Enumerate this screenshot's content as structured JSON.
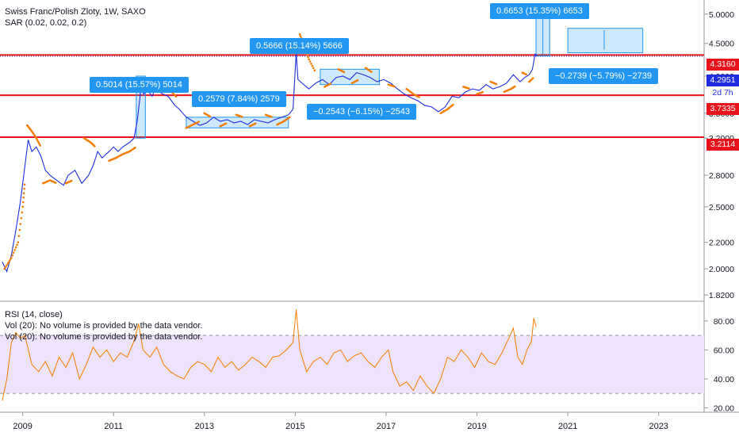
{
  "header": {
    "symbol_line": "Swiss Franc/Polish Zloty, 1W, SAXO",
    "indicator_line": "SAR (0.02, 0.02, 0.2)"
  },
  "rsi_pane": {
    "title": "RSI (14, close)",
    "vol_line_1": "Vol (20): No volume is provided by the data vendor.",
    "vol_line_2": "Vol (20): No volume is provided by the data vendor."
  },
  "callouts": {
    "c1": "0.5014 (15.57%) 5014",
    "c2": "0.2579 (7.84%) 2579",
    "c3": "0.5666 (15.14%) 5666",
    "c4": "−0.2543 (−6.15%) −2543",
    "c5": "0.6653 (15.35%) 6653",
    "c6": "−0.2739 (−5.79%) −2739"
  },
  "price_tags": {
    "t1": "4.3160",
    "t2": "4.2951",
    "t3": "2d 7h",
    "t4": "3.7335",
    "t5": "3.2114"
  },
  "colors": {
    "price_line": "#1f2de0",
    "sar_dots": "#f57c00",
    "horizontal_lines": "#e8131b",
    "callout_bg": "#2196f3",
    "rsi_line": "#f57c00",
    "rsi_band": "#efe3fb"
  },
  "chart_data": {
    "type": "line",
    "title": "Swiss Franc/Polish Zloty, 1W, SAXO",
    "y_scale": "log",
    "y_ticks": [
      1.82,
      2.0,
      2.2,
      2.5,
      2.8,
      3.2,
      3.5,
      4.0,
      4.5,
      5.0
    ],
    "y_tick_labels": [
      "1.8200",
      "2.0000",
      "2.2000",
      "2.5000",
      "2.8000",
      "3.2000",
      "3.5000",
      "4.0000",
      "4.5000",
      "5.0000"
    ],
    "x_ticks": [
      2009,
      2011,
      2013,
      2015,
      2017,
      2019,
      2021,
      2023
    ],
    "xlim": [
      2008.5,
      2024.0
    ],
    "ylim": [
      1.8,
      5.2
    ],
    "horizontal_levels": [
      4.316,
      3.7335,
      3.2114
    ],
    "price_series": [
      [
        2008.55,
        2.05
      ],
      [
        2008.65,
        1.98
      ],
      [
        2008.75,
        2.1
      ],
      [
        2008.85,
        2.3
      ],
      [
        2008.95,
        2.55
      ],
      [
        2009.05,
        2.9
      ],
      [
        2009.12,
        3.18
      ],
      [
        2009.2,
        3.05
      ],
      [
        2009.3,
        3.1
      ],
      [
        2009.4,
        3.0
      ],
      [
        2009.5,
        2.85
      ],
      [
        2009.6,
        2.8
      ],
      [
        2009.75,
        2.75
      ],
      [
        2009.9,
        2.7
      ],
      [
        2010.0,
        2.8
      ],
      [
        2010.15,
        2.85
      ],
      [
        2010.3,
        2.72
      ],
      [
        2010.45,
        2.8
      ],
      [
        2010.55,
        2.9
      ],
      [
        2010.65,
        3.05
      ],
      [
        2010.75,
        2.98
      ],
      [
        2010.9,
        3.05
      ],
      [
        2011.0,
        3.1
      ],
      [
        2011.1,
        3.05
      ],
      [
        2011.2,
        3.1
      ],
      [
        2011.35,
        3.15
      ],
      [
        2011.45,
        3.2
      ],
      [
        2011.52,
        3.4
      ],
      [
        2011.58,
        3.7
      ],
      [
        2011.62,
        3.98
      ],
      [
        2011.66,
        3.75
      ],
      [
        2011.75,
        3.8
      ],
      [
        2011.85,
        3.72
      ],
      [
        2011.95,
        3.88
      ],
      [
        2012.05,
        3.76
      ],
      [
        2012.2,
        3.72
      ],
      [
        2012.35,
        3.6
      ],
      [
        2012.45,
        3.55
      ],
      [
        2012.6,
        3.45
      ],
      [
        2012.75,
        3.4
      ],
      [
        2012.9,
        3.35
      ],
      [
        2013.05,
        3.38
      ],
      [
        2013.2,
        3.45
      ],
      [
        2013.35,
        3.4
      ],
      [
        2013.5,
        3.42
      ],
      [
        2013.65,
        3.38
      ],
      [
        2013.8,
        3.4
      ],
      [
        2013.95,
        3.36
      ],
      [
        2014.1,
        3.42
      ],
      [
        2014.25,
        3.4
      ],
      [
        2014.4,
        3.38
      ],
      [
        2014.55,
        3.42
      ],
      [
        2014.7,
        3.45
      ],
      [
        2014.85,
        3.48
      ],
      [
        2014.95,
        3.55
      ],
      [
        2015.02,
        4.35
      ],
      [
        2015.06,
        3.95
      ],
      [
        2015.15,
        3.9
      ],
      [
        2015.3,
        3.82
      ],
      [
        2015.45,
        3.9
      ],
      [
        2015.6,
        3.95
      ],
      [
        2015.75,
        3.88
      ],
      [
        2015.9,
        3.98
      ],
      [
        2016.05,
        4.0
      ],
      [
        2016.2,
        3.95
      ],
      [
        2016.35,
        4.05
      ],
      [
        2016.5,
        4.02
      ],
      [
        2016.65,
        3.98
      ],
      [
        2016.8,
        3.92
      ],
      [
        2016.95,
        3.95
      ],
      [
        2017.1,
        3.9
      ],
      [
        2017.25,
        3.82
      ],
      [
        2017.4,
        3.75
      ],
      [
        2017.55,
        3.7
      ],
      [
        2017.7,
        3.66
      ],
      [
        2017.85,
        3.6
      ],
      [
        2018.0,
        3.58
      ],
      [
        2018.15,
        3.52
      ],
      [
        2018.3,
        3.58
      ],
      [
        2018.45,
        3.72
      ],
      [
        2018.6,
        3.7
      ],
      [
        2018.75,
        3.78
      ],
      [
        2018.9,
        3.82
      ],
      [
        2019.05,
        3.8
      ],
      [
        2019.2,
        3.88
      ],
      [
        2019.35,
        3.82
      ],
      [
        2019.5,
        3.85
      ],
      [
        2019.65,
        3.9
      ],
      [
        2019.8,
        4.02
      ],
      [
        2019.95,
        3.92
      ],
      [
        2020.05,
        3.98
      ],
      [
        2020.15,
        4.02
      ],
      [
        2020.22,
        4.1
      ],
      [
        2020.28,
        4.33
      ],
      [
        2020.32,
        4.295
      ]
    ],
    "sar_segments": [
      [
        [
          2009.1,
          3.35
        ],
        [
          2009.2,
          3.28
        ],
        [
          2009.3,
          3.2
        ],
        [
          2009.4,
          3.1
        ]
      ],
      [
        [
          2008.6,
          2.0
        ],
        [
          2008.75,
          2.08
        ],
        [
          2008.9,
          2.2
        ],
        [
          2009.0,
          2.5
        ],
        [
          2009.05,
          2.75
        ]
      ],
      [
        [
          2009.45,
          2.72
        ],
        [
          2009.6,
          2.75
        ],
        [
          2009.75,
          2.72
        ]
      ],
      [
        [
          2009.95,
          2.72
        ],
        [
          2010.1,
          2.75
        ]
      ],
      [
        [
          2010.35,
          3.2
        ],
        [
          2010.5,
          3.15
        ],
        [
          2010.6,
          3.1
        ]
      ],
      [
        [
          2010.9,
          2.95
        ],
        [
          2011.05,
          2.98
        ],
        [
          2011.2,
          3.02
        ],
        [
          2011.35,
          3.05
        ],
        [
          2011.5,
          3.1
        ]
      ],
      [
        [
          2011.7,
          3.95
        ],
        [
          2011.85,
          3.92
        ]
      ],
      [
        [
          2012.1,
          3.88
        ],
        [
          2012.25,
          3.8
        ],
        [
          2012.4,
          3.7
        ]
      ],
      [
        [
          2012.6,
          3.32
        ],
        [
          2012.75,
          3.36
        ],
        [
          2012.9,
          3.4
        ]
      ],
      [
        [
          2013.0,
          3.5
        ],
        [
          2013.15,
          3.45
        ]
      ],
      [
        [
          2013.35,
          3.34
        ],
        [
          2013.5,
          3.38
        ]
      ],
      [
        [
          2013.7,
          3.48
        ],
        [
          2013.85,
          3.45
        ]
      ],
      [
        [
          2014.0,
          3.34
        ],
        [
          2014.15,
          3.38
        ]
      ],
      [
        [
          2014.35,
          3.48
        ],
        [
          2014.5,
          3.45
        ]
      ],
      [
        [
          2014.6,
          3.36
        ],
        [
          2014.75,
          3.4
        ],
        [
          2014.9,
          3.46
        ]
      ],
      [
        [
          2015.1,
          4.65
        ],
        [
          2015.2,
          4.45
        ],
        [
          2015.3,
          4.25
        ],
        [
          2015.45,
          4.05
        ]
      ],
      [
        [
          2015.65,
          3.85
        ],
        [
          2015.8,
          3.9
        ]
      ],
      [
        [
          2015.95,
          4.1
        ],
        [
          2016.1,
          4.05
        ]
      ],
      [
        [
          2016.25,
          3.9
        ],
        [
          2016.4,
          3.95
        ]
      ],
      [
        [
          2016.55,
          4.12
        ],
        [
          2016.7,
          4.05
        ]
      ],
      [
        [
          2017.05,
          3.88
        ],
        [
          2017.2,
          3.85
        ]
      ],
      [
        [
          2017.45,
          3.82
        ],
        [
          2017.6,
          3.75
        ],
        [
          2017.75,
          3.7
        ]
      ],
      [
        [
          2018.2,
          3.5
        ],
        [
          2018.35,
          3.55
        ],
        [
          2018.5,
          3.62
        ]
      ],
      [
        [
          2018.7,
          3.85
        ],
        [
          2018.85,
          3.82
        ]
      ],
      [
        [
          2019.0,
          3.75
        ],
        [
          2019.15,
          3.78
        ]
      ],
      [
        [
          2019.3,
          3.92
        ],
        [
          2019.45,
          3.88
        ]
      ],
      [
        [
          2019.6,
          3.78
        ],
        [
          2019.75,
          3.82
        ],
        [
          2019.85,
          3.86
        ]
      ],
      [
        [
          2020.0,
          4.05
        ],
        [
          2020.1,
          4.02
        ]
      ],
      [
        [
          2020.15,
          3.92
        ],
        [
          2020.25,
          3.98
        ]
      ]
    ],
    "rsi": {
      "y_ticks": [
        20,
        40,
        60,
        80
      ],
      "y_tick_labels": [
        "20.00",
        "40.00",
        "60.00",
        "80.00"
      ],
      "band": [
        30,
        70
      ],
      "series": [
        [
          2008.55,
          25
        ],
        [
          2008.65,
          40
        ],
        [
          2008.75,
          65
        ],
        [
          2008.85,
          72
        ],
        [
          2008.95,
          68
        ],
        [
          2009.05,
          70
        ],
        [
          2009.2,
          50
        ],
        [
          2009.35,
          45
        ],
        [
          2009.5,
          52
        ],
        [
          2009.65,
          42
        ],
        [
          2009.8,
          55
        ],
        [
          2009.95,
          48
        ],
        [
          2010.1,
          58
        ],
        [
          2010.25,
          40
        ],
        [
          2010.4,
          50
        ],
        [
          2010.55,
          62
        ],
        [
          2010.7,
          55
        ],
        [
          2010.85,
          60
        ],
        [
          2011.0,
          52
        ],
        [
          2011.15,
          58
        ],
        [
          2011.3,
          55
        ],
        [
          2011.45,
          66
        ],
        [
          2011.55,
          78
        ],
        [
          2011.65,
          60
        ],
        [
          2011.8,
          55
        ],
        [
          2011.95,
          62
        ],
        [
          2012.1,
          50
        ],
        [
          2012.25,
          45
        ],
        [
          2012.4,
          42
        ],
        [
          2012.55,
          40
        ],
        [
          2012.7,
          48
        ],
        [
          2012.85,
          52
        ],
        [
          2013.0,
          50
        ],
        [
          2013.15,
          45
        ],
        [
          2013.3,
          55
        ],
        [
          2013.45,
          48
        ],
        [
          2013.6,
          52
        ],
        [
          2013.75,
          46
        ],
        [
          2013.9,
          50
        ],
        [
          2014.05,
          55
        ],
        [
          2014.2,
          52
        ],
        [
          2014.35,
          48
        ],
        [
          2014.5,
          55
        ],
        [
          2014.65,
          56
        ],
        [
          2014.8,
          60
        ],
        [
          2014.95,
          65
        ],
        [
          2015.02,
          88
        ],
        [
          2015.1,
          60
        ],
        [
          2015.25,
          45
        ],
        [
          2015.4,
          52
        ],
        [
          2015.55,
          55
        ],
        [
          2015.7,
          50
        ],
        [
          2015.85,
          58
        ],
        [
          2016.0,
          60
        ],
        [
          2016.15,
          52
        ],
        [
          2016.3,
          56
        ],
        [
          2016.45,
          58
        ],
        [
          2016.6,
          52
        ],
        [
          2016.75,
          48
        ],
        [
          2016.9,
          55
        ],
        [
          2017.05,
          60
        ],
        [
          2017.15,
          45
        ],
        [
          2017.3,
          35
        ],
        [
          2017.45,
          38
        ],
        [
          2017.6,
          32
        ],
        [
          2017.75,
          42
        ],
        [
          2017.9,
          35
        ],
        [
          2018.05,
          30
        ],
        [
          2018.2,
          40
        ],
        [
          2018.35,
          55
        ],
        [
          2018.5,
          52
        ],
        [
          2018.65,
          60
        ],
        [
          2018.8,
          55
        ],
        [
          2018.95,
          48
        ],
        [
          2019.1,
          58
        ],
        [
          2019.25,
          52
        ],
        [
          2019.4,
          50
        ],
        [
          2019.55,
          58
        ],
        [
          2019.7,
          68
        ],
        [
          2019.8,
          75
        ],
        [
          2019.9,
          55
        ],
        [
          2020.0,
          50
        ],
        [
          2020.1,
          60
        ],
        [
          2020.2,
          66
        ],
        [
          2020.25,
          82
        ],
        [
          2020.3,
          76
        ]
      ]
    }
  }
}
